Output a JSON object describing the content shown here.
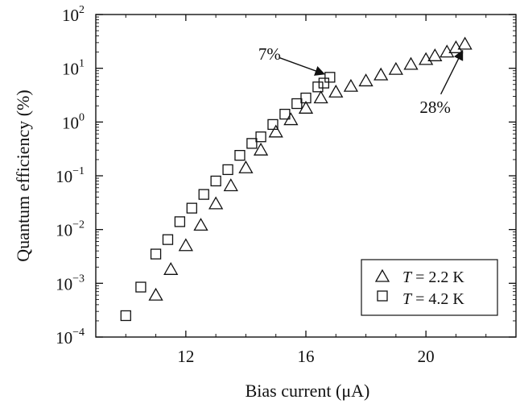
{
  "chart_data": {
    "type": "scatter",
    "xlabel": "Bias current (μA)",
    "ylabel": "Quantum efficiency (%)",
    "x_scale": "linear",
    "y_scale": "log",
    "xlim": [
      9,
      23
    ],
    "ylim": [
      0.0001,
      100
    ],
    "x_ticks": [
      12,
      16,
      20
    ],
    "y_ticks": [
      {
        "value": 0.0001,
        "base": "10",
        "exp": "−4"
      },
      {
        "value": 0.001,
        "base": "10",
        "exp": "−3"
      },
      {
        "value": 0.01,
        "base": "10",
        "exp": "−2"
      },
      {
        "value": 0.1,
        "base": "10",
        "exp": "−1"
      },
      {
        "value": 1,
        "base": "10",
        "exp": "0"
      },
      {
        "value": 10,
        "base": "10",
        "exp": "1"
      },
      {
        "value": 100,
        "base": "10",
        "exp": "2"
      }
    ],
    "legend": {
      "placement": "bottom-right",
      "entries": [
        {
          "marker": "triangle",
          "var": "T",
          "rest": " = 2.2 K"
        },
        {
          "marker": "square",
          "var": "T",
          "rest": " = 4.2 K"
        }
      ]
    },
    "series": [
      {
        "marker": "triangle",
        "x": [
          11.0,
          11.5,
          12.0,
          12.5,
          13.0,
          13.5,
          14.0,
          14.5,
          15.0,
          15.5,
          16.0,
          16.5,
          17.0,
          17.5,
          18.0,
          18.5,
          19.0,
          19.5,
          20.0,
          20.3,
          20.7,
          21.0,
          21.3
        ],
        "y": [
          0.0006,
          0.0018,
          0.005,
          0.012,
          0.03,
          0.065,
          0.14,
          0.3,
          0.65,
          1.1,
          1.8,
          2.8,
          3.6,
          4.6,
          5.8,
          7.5,
          9.5,
          11.8,
          14.5,
          17.0,
          20.0,
          24.0,
          28.0
        ]
      },
      {
        "marker": "square",
        "x": [
          10.0,
          10.5,
          11.0,
          11.4,
          11.8,
          12.2,
          12.6,
          13.0,
          13.4,
          13.8,
          14.2,
          14.5,
          14.9,
          15.3,
          15.7,
          16.0,
          16.4,
          16.6,
          16.8
        ],
        "y": [
          0.00025,
          0.00085,
          0.0035,
          0.0065,
          0.014,
          0.025,
          0.045,
          0.08,
          0.13,
          0.24,
          0.4,
          0.53,
          0.9,
          1.4,
          2.2,
          2.8,
          4.5,
          5.3,
          6.8
        ]
      }
    ],
    "annotations": [
      {
        "text": "7%",
        "x": 16.8,
        "y": 6.8,
        "placement": "upper-left"
      },
      {
        "text": "28%",
        "x": 21.3,
        "y": 28.0,
        "placement": "lower-left"
      }
    ]
  }
}
